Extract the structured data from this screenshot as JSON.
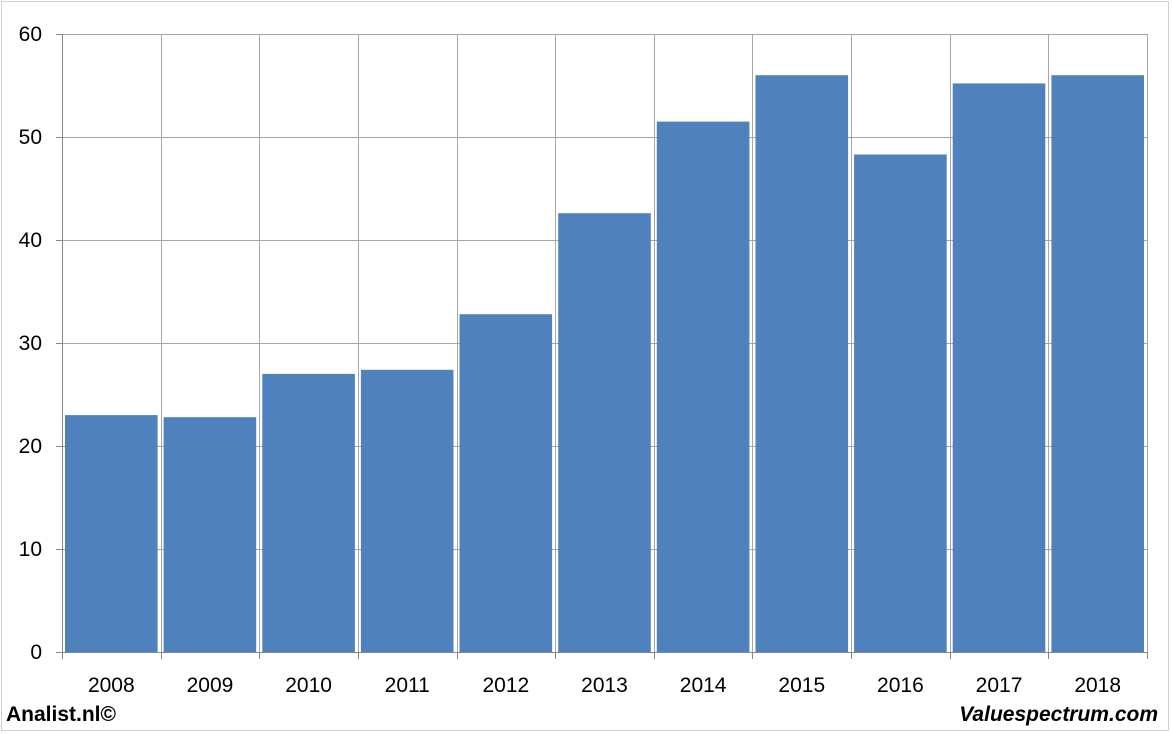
{
  "chart_data": {
    "type": "bar",
    "categories": [
      "2008",
      "2009",
      "2010",
      "2011",
      "2012",
      "2013",
      "2014",
      "2015",
      "2016",
      "2017",
      "2018"
    ],
    "values": [
      23.0,
      22.8,
      27.0,
      27.4,
      32.8,
      42.6,
      51.5,
      56.0,
      48.3,
      55.2,
      56.0
    ],
    "ylim": [
      0,
      60
    ],
    "yticks": [
      0,
      10,
      20,
      30,
      40,
      50,
      60
    ],
    "title": "",
    "xlabel": "",
    "ylabel": "",
    "grid": true,
    "bar_color": "#4f81bd",
    "grid_color": "#a6a6a6"
  },
  "footer": {
    "left": "Analist.nl©",
    "right": "Valuespectrum.com"
  }
}
